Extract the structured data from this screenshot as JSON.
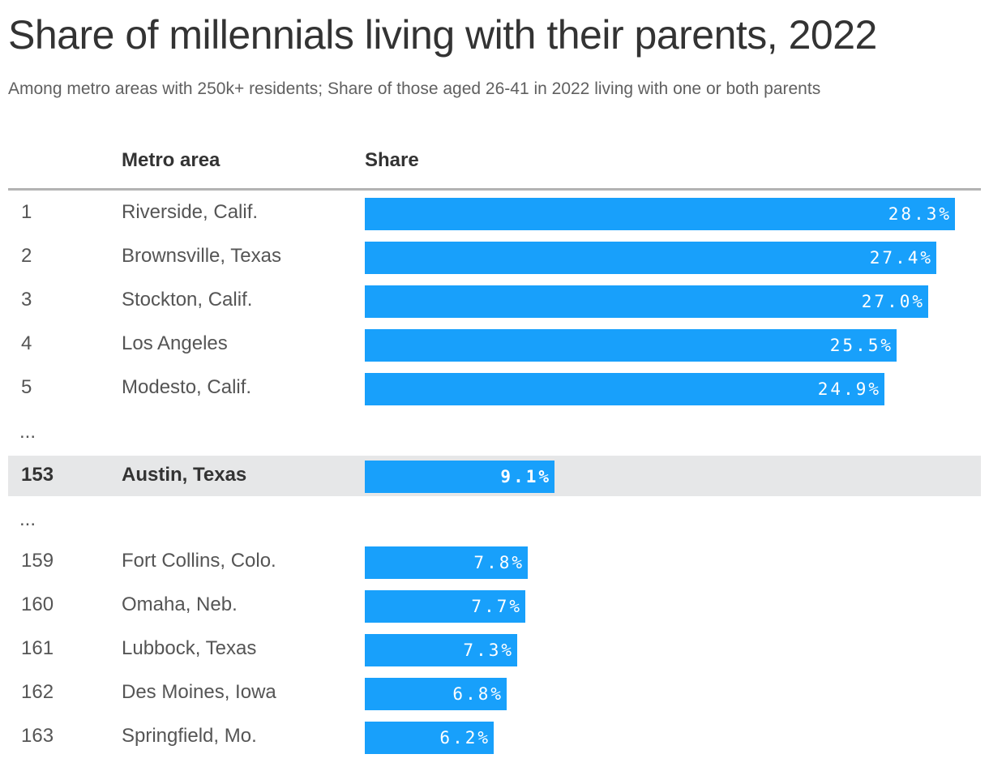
{
  "title": "Share of millennials living with their parents, 2022",
  "subtitle": "Among metro areas with 250k+ residents; Share of those aged 26-41 in 2022 living with one or both parents",
  "columns": {
    "rank": "",
    "metro": "Metro area",
    "share": "Share"
  },
  "colors": {
    "bar": "#18a0fb",
    "highlight_bg": "#e6e7e8",
    "rule": "#b3b3b3",
    "text": "#333333"
  },
  "chart_data": {
    "type": "bar",
    "orientation": "horizontal",
    "title": "Share of millennials living with their parents, 2022",
    "subtitle": "Among metro areas with 250k+ residents; Share of those aged 26-41 in 2022 living with one or both parents",
    "xlabel": "Share",
    "ylabel": "Metro area",
    "unit": "%",
    "xlim": [
      0,
      28.3
    ],
    "grid": false,
    "highlight": "Austin, Texas",
    "rows": [
      {
        "type": "data",
        "rank": "1",
        "metro": "Riverside, Calif.",
        "value": 28.3,
        "label": "28.3%"
      },
      {
        "type": "data",
        "rank": "2",
        "metro": "Brownsville, Texas",
        "value": 27.4,
        "label": "27.4%"
      },
      {
        "type": "data",
        "rank": "3",
        "metro": "Stockton, Calif.",
        "value": 27.0,
        "label": "27.0%"
      },
      {
        "type": "data",
        "rank": "4",
        "metro": "Los Angeles",
        "value": 25.5,
        "label": "25.5%"
      },
      {
        "type": "data",
        "rank": "5",
        "metro": "Modesto, Calif.",
        "value": 24.9,
        "label": "24.9%"
      },
      {
        "type": "ellipsis",
        "text": "..."
      },
      {
        "type": "data",
        "rank": "153",
        "metro": "Austin, Texas",
        "value": 9.1,
        "label": "9.1%",
        "highlight": true
      },
      {
        "type": "ellipsis",
        "text": "..."
      },
      {
        "type": "data",
        "rank": "159",
        "metro": "Fort Collins, Colo.",
        "value": 7.8,
        "label": "7.8%"
      },
      {
        "type": "data",
        "rank": "160",
        "metro": "Omaha, Neb.",
        "value": 7.7,
        "label": "7.7%"
      },
      {
        "type": "data",
        "rank": "161",
        "metro": "Lubbock, Texas",
        "value": 7.3,
        "label": "7.3%"
      },
      {
        "type": "data",
        "rank": "162",
        "metro": "Des Moines, Iowa",
        "value": 6.8,
        "label": "6.8%"
      },
      {
        "type": "data",
        "rank": "163",
        "metro": "Springfield, Mo.",
        "value": 6.2,
        "label": "6.2%"
      }
    ]
  }
}
